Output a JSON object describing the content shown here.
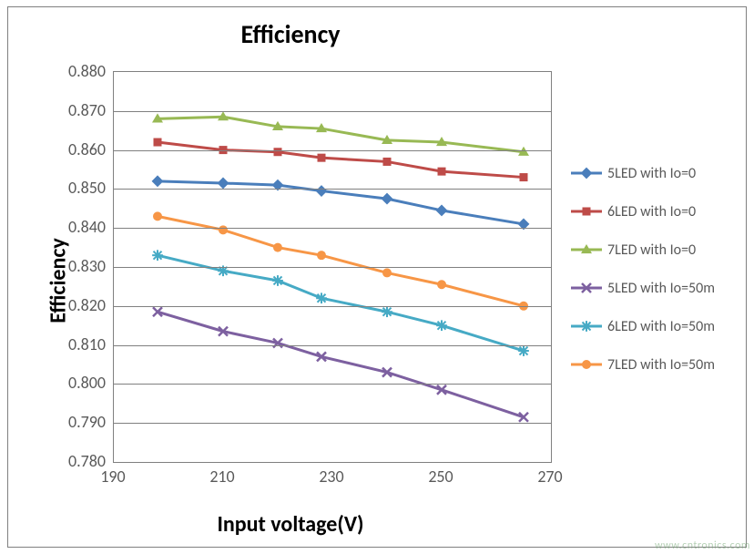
{
  "chart": {
    "type": "line",
    "title": "Efficiency",
    "title_fontsize": 28,
    "title_fontweight": "bold",
    "xlabel": "Input voltage(V)",
    "ylabel": "Efficiency",
    "label_fontsize": 24,
    "tick_fontsize": 18,
    "tick_color": "#595959",
    "background_color": "#ffffff",
    "plot_background_color": "#ffffff",
    "border_color": "#808080",
    "grid_color": "#808080",
    "line_width": 3,
    "marker_size": 9,
    "xlim": [
      190,
      270
    ],
    "ylim": [
      0.78,
      0.88
    ],
    "xticks": [
      190,
      210,
      230,
      250,
      270
    ],
    "yticks": [
      0.78,
      0.79,
      0.8,
      0.81,
      0.82,
      0.83,
      0.84,
      0.85,
      0.86,
      0.87,
      0.88
    ],
    "ytick_labels": [
      "0.780",
      "0.790",
      "0.800",
      "0.810",
      "0.820",
      "0.830",
      "0.840",
      "0.850",
      "0.860",
      "0.870",
      "0.880"
    ],
    "x_values": [
      198,
      210,
      220,
      228,
      240,
      250,
      265
    ],
    "series": [
      {
        "name": "5LED with Io=0",
        "color": "#4a7ebb",
        "marker": "diamond",
        "values": [
          0.852,
          0.8515,
          0.851,
          0.8495,
          0.8475,
          0.8445,
          0.841
        ]
      },
      {
        "name": "6LED with Io=0",
        "color": "#be4b48",
        "marker": "square",
        "values": [
          0.862,
          0.86,
          0.8595,
          0.858,
          0.857,
          0.8545,
          0.853
        ]
      },
      {
        "name": "7LED with Io=0",
        "color": "#98b954",
        "marker": "triangle",
        "values": [
          0.868,
          0.8685,
          0.866,
          0.8655,
          0.8625,
          0.862,
          0.8595
        ]
      },
      {
        "name": "5LED with Io=50m",
        "color": "#7d60a0",
        "marker": "x",
        "values": [
          0.8185,
          0.8135,
          0.8105,
          0.807,
          0.803,
          0.7985,
          0.7915
        ]
      },
      {
        "name": "6LED with Io=50m",
        "color": "#46aac5",
        "marker": "star",
        "values": [
          0.833,
          0.829,
          0.8265,
          0.822,
          0.8185,
          0.815,
          0.8085
        ]
      },
      {
        "name": "7LED with Io=50m",
        "color": "#f79646",
        "marker": "circle",
        "values": [
          0.843,
          0.8395,
          0.835,
          0.833,
          0.8285,
          0.8255,
          0.82
        ]
      }
    ],
    "legend": {
      "position": "right",
      "fontsize": 16,
      "text_color": "#595959"
    }
  },
  "watermark": "www.cntronics.com"
}
